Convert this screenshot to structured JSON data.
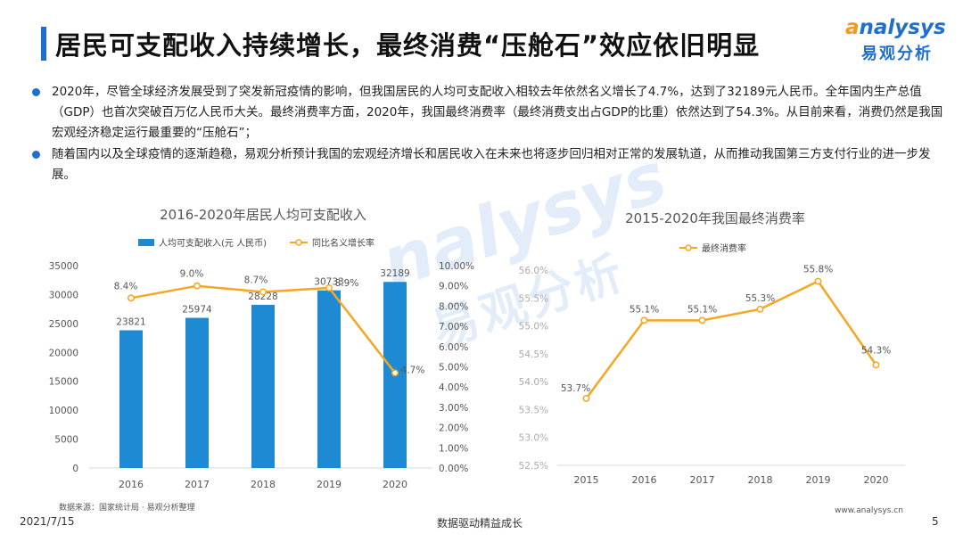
{
  "title": "居民可支配收入持续增长，最终消费“压舱石”效应依旧明显",
  "logo": {
    "en_a": "a",
    "en_rest": "nalysys",
    "cn": "易观分析"
  },
  "watermark": {
    "en": "nalysys",
    "cn": "易观分析"
  },
  "bullets": [
    "2020年，尽管全球经济发展受到了突发新冠疫情的影响，但我国居民的人均可支配收入相较去年依然名义增长了4.7%，达到了32189元人民币。全年国内生产总值（GDP）也首次突破百万亿人民币大关。最终消费率方面，2020年，我国最终消费率（最终消费支出占GDP的比重）依然达到了54.3%。从目前来看，消费仍然是我国宏观经济稳定运行最重要的“压舱石”；",
    "随着国内以及全球疫情的逐渐趋稳，易观分析预计我国的宏观经济增长和居民收入在未来也将逐步回归相对正常的发展轨道，从而推动我国第三方支付行业的进一步发展。"
  ],
  "chart_data": [
    {
      "type": "bar",
      "title": "2016-2020年居民人均可支配收入",
      "categories": [
        "2016",
        "2017",
        "2018",
        "2019",
        "2020"
      ],
      "series": [
        {
          "name": "人均可支配收入(元 人民币)",
          "type": "bar",
          "axis": "left",
          "values": [
            23821,
            25974,
            28228,
            30733,
            32189
          ],
          "labels": [
            "23821",
            "25974",
            "28228",
            "30733",
            "32189"
          ]
        },
        {
          "name": "同比名义增长率",
          "type": "line",
          "axis": "right",
          "values": [
            8.4,
            9.0,
            8.7,
            8.9,
            4.7
          ],
          "labels": [
            "8.4%",
            "9.0%",
            "8.7%",
            "8.9%",
            "4.7%"
          ]
        }
      ],
      "y_left": {
        "min": 0,
        "max": 35000,
        "step": 5000,
        "ticks": [
          "0",
          "5000",
          "10000",
          "15000",
          "20000",
          "25000",
          "30000",
          "35000"
        ]
      },
      "y_right": {
        "min": 0,
        "max": 10,
        "step": 1,
        "ticks": [
          "0.00%",
          "1.00%",
          "2.00%",
          "3.00%",
          "4.00%",
          "5.00%",
          "6.00%",
          "7.00%",
          "8.00%",
          "9.00%",
          "10.00%"
        ]
      },
      "legend": "top-left",
      "grid": false,
      "colors": {
        "bar": "#1f8ad4",
        "line": "#f5a623"
      }
    },
    {
      "type": "line",
      "title": "2015-2020年我国最终消费率",
      "categories": [
        "2015",
        "2016",
        "2017",
        "2018",
        "2019",
        "2020"
      ],
      "series": [
        {
          "name": "最终消费率",
          "values": [
            53.7,
            55.1,
            55.1,
            55.3,
            55.8,
            54.3
          ],
          "labels": [
            "53.7%",
            "55.1%",
            "55.1%",
            "55.3%",
            "55.8%",
            "54.3%"
          ]
        }
      ],
      "y": {
        "min": 52.5,
        "max": 56.0,
        "step": 0.5,
        "ticks": [
          "52.5%",
          "53.0%",
          "53.5%",
          "54.0%",
          "54.5%",
          "55.0%",
          "55.5%",
          "56.0%"
        ]
      },
      "legend": "top-left",
      "grid": false,
      "colors": {
        "line": "#f5a623"
      }
    }
  ],
  "source": "数据来源：国家统计局 · 易观分析整理",
  "footer": {
    "date": "2021/7/15",
    "center": "数据驱动精益成长",
    "url": "www.analysys.cn",
    "page": "5"
  }
}
